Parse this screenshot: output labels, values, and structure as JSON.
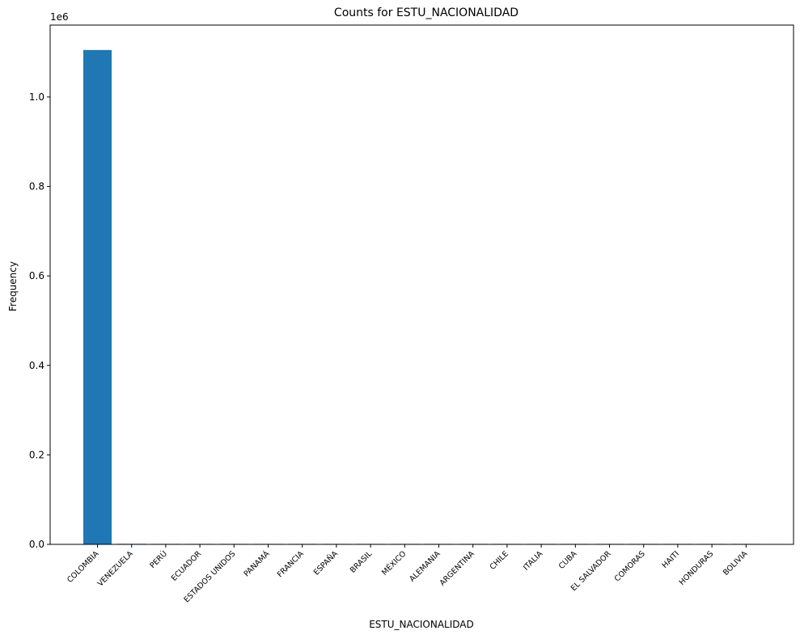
{
  "chart_data": {
    "type": "bar",
    "title": "Counts for ESTU_NACIONALIDAD",
    "xlabel": "ESTU_NACIONALIDAD",
    "ylabel": "Frequency",
    "y_offset_label": "1e6",
    "ylim": [
      0,
      1.16
    ],
    "y_scale_note": "values in millions",
    "yticks": [
      "0.0",
      "0.2",
      "0.4",
      "0.6",
      "0.8",
      "1.0"
    ],
    "ytick_values": [
      0,
      0.2,
      0.4,
      0.6,
      0.8,
      1.0
    ],
    "categories": [
      "COLOMBIA",
      "VENEZUELA",
      "PERÚ",
      "ECUADOR",
      "ESTADOS UNIDOS",
      "PANAMÁ",
      "FRANCIA",
      "ESPAÑA",
      "BRASIL",
      "MÉXICO",
      "ALEMANIA",
      "ARGENTINA",
      "CHILE",
      "ITALIA",
      "CUBA",
      "EL SALVADOR",
      "COMORAS",
      "HAITI",
      "HONDURAS",
      "BOLIVIA"
    ],
    "values": [
      1.105,
      0.0012,
      0.0006,
      0.0005,
      0.0003,
      0.0002,
      0.0001,
      0.0001,
      0.0001,
      0.0001,
      0.0001,
      0.0001,
      0.0001,
      0.0001,
      5e-05,
      5e-05,
      5e-05,
      5e-05,
      5e-05,
      5e-05
    ],
    "bar_color": "#1f77b4",
    "grid": false,
    "legend": "none"
  }
}
